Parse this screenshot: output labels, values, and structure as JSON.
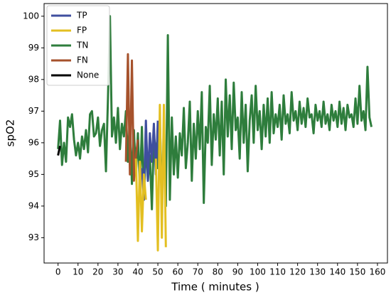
{
  "chart_data": {
    "type": "line",
    "xlabel": "Time ( minutes )",
    "ylabel": "spO2",
    "xlim": [
      -7,
      165
    ],
    "ylim": [
      92.2,
      100.4
    ],
    "xticks": [
      0,
      10,
      20,
      30,
      40,
      50,
      60,
      70,
      80,
      90,
      100,
      110,
      120,
      130,
      140,
      150,
      160
    ],
    "yticks": [
      93,
      94,
      95,
      96,
      97,
      98,
      99,
      100
    ],
    "grid": false,
    "legend": "upper left",
    "series": [
      {
        "name": "TP",
        "color": "#3f4f9f",
        "x": [
          42,
          43,
          44,
          45,
          46,
          47,
          48,
          49,
          50
        ],
        "values": [
          95.2,
          94.2,
          96.7,
          94.8,
          96.3,
          95.4,
          96.6,
          95.0,
          96.7
        ]
      },
      {
        "name": "FP",
        "color": "#e3bf21",
        "x": [
          39,
          40,
          41,
          42,
          43,
          44,
          48,
          49,
          50,
          51,
          52,
          53,
          54
        ],
        "values": [
          95.5,
          92.9,
          95.4,
          93.2,
          95.0,
          94.2,
          null,
          95.5,
          92.6,
          97.2,
          93.0,
          97.2,
          92.7
        ]
      },
      {
        "name": "TN",
        "color": "#2e7d3c",
        "x": [
          0,
          1,
          2,
          3,
          4,
          5,
          6,
          7,
          8,
          9,
          10,
          11,
          12,
          13,
          14,
          15,
          16,
          17,
          18,
          19,
          20,
          21,
          22,
          23,
          24,
          25,
          26,
          27,
          28,
          29,
          30,
          31,
          32,
          33,
          34,
          35,
          36,
          37,
          38,
          39,
          40,
          41,
          42,
          43,
          44,
          45,
          46,
          47,
          48,
          49,
          50,
          51,
          52,
          53,
          54,
          55,
          56,
          57,
          58,
          59,
          60,
          61,
          62,
          63,
          64,
          65,
          66,
          67,
          68,
          69,
          70,
          71,
          72,
          73,
          74,
          75,
          76,
          77,
          78,
          79,
          80,
          81,
          82,
          83,
          84,
          85,
          86,
          87,
          88,
          89,
          90,
          91,
          92,
          93,
          94,
          95,
          96,
          97,
          98,
          99,
          100,
          101,
          102,
          103,
          104,
          105,
          106,
          107,
          108,
          109,
          110,
          111,
          112,
          113,
          114,
          115,
          116,
          117,
          118,
          119,
          120,
          121,
          122,
          123,
          124,
          125,
          126,
          127,
          128,
          129,
          130,
          131,
          132,
          133,
          134,
          135,
          136,
          137,
          138,
          139,
          140,
          141,
          142,
          143,
          144,
          145,
          146,
          147,
          148,
          149,
          150,
          151,
          152,
          153,
          154,
          155,
          156,
          157
        ],
        "values": [
          95.8,
          96.7,
          95.3,
          96.0,
          95.4,
          96.8,
          96.5,
          96.9,
          96.1,
          95.6,
          96.0,
          95.5,
          96.2,
          95.8,
          96.4,
          95.7,
          96.9,
          97.0,
          96.2,
          96.3,
          96.8,
          95.9,
          96.4,
          96.6,
          95.1,
          97.4,
          100.0,
          96.2,
          96.8,
          96.0,
          97.1,
          95.8,
          96.6,
          96.2,
          97.0,
          95.4,
          96.8,
          94.7,
          96.4,
          95.0,
          96.3,
          94.6,
          96.5,
          94.2,
          96.0,
          94.8,
          95.6,
          93.9,
          96.2,
          95.8,
          95.2,
          96.6,
          94.6,
          95.8,
          94.0,
          99.4,
          94.2,
          96.8,
          95.0,
          96.2,
          94.9,
          96.3,
          95.6,
          97.1,
          95.2,
          96.0,
          97.3,
          94.8,
          96.6,
          95.5,
          97.0,
          95.8,
          97.6,
          94.1,
          96.5,
          96.0,
          97.8,
          95.3,
          96.9,
          96.1,
          97.4,
          95.6,
          97.3,
          95.0,
          98.0,
          96.2,
          97.5,
          95.8,
          97.9,
          96.4,
          96.8,
          95.5,
          97.6,
          96.0,
          97.2,
          95.1,
          96.7,
          97.5,
          96.0,
          97.8,
          96.4,
          97.0,
          95.8,
          97.2,
          96.2,
          97.4,
          96.0,
          97.6,
          96.3,
          96.9,
          96.5,
          97.2,
          96.1,
          97.5,
          96.6,
          96.9,
          96.3,
          97.6,
          96.7,
          97.0,
          96.4,
          97.3,
          96.6,
          97.1,
          96.5,
          97.4,
          96.8,
          96.9,
          96.3,
          97.2,
          96.7,
          97.0,
          96.5,
          97.3,
          96.6,
          96.9,
          96.4,
          97.2,
          96.7,
          97.0,
          96.5,
          97.3,
          96.6,
          97.1,
          96.4,
          97.2,
          96.8,
          96.9,
          96.5,
          97.4,
          96.6,
          97.8,
          96.7,
          97.0,
          96.4,
          98.4,
          96.8,
          96.5
        ]
      },
      {
        "name": "FN",
        "color": "#a6522c",
        "x": [
          34,
          35,
          36,
          37,
          38,
          39,
          40
        ],
        "values": [
          95.4,
          98.8,
          95.0,
          98.6,
          94.8,
          95.6,
          96.1
        ]
      },
      {
        "name": "None",
        "color": "#000000",
        "x": [
          0,
          1
        ],
        "values": [
          95.6,
          95.9
        ]
      }
    ],
    "draw_order": [
      "TN",
      "FN",
      "TP",
      "FP",
      "None"
    ]
  }
}
